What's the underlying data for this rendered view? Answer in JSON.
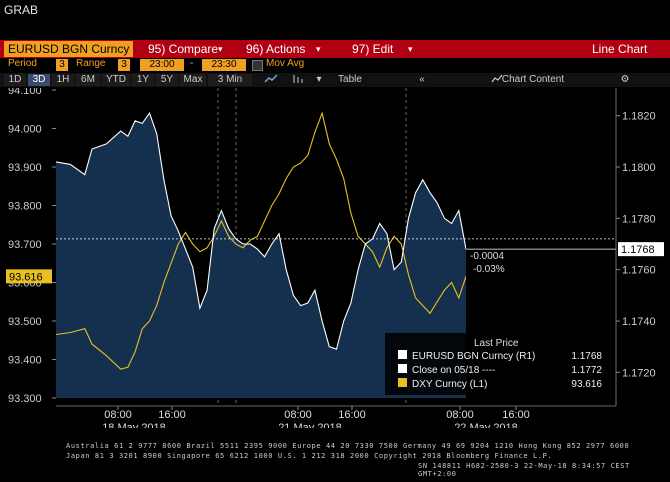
{
  "header": {
    "grab": "GRAB"
  },
  "toolbar": {
    "ticker": "EURUSD BGN Curncy",
    "compare": "95) Compare",
    "actions": "96) Actions",
    "edit": "97) Edit",
    "chart_type": "Line Chart",
    "dropdown_glyph": "▾"
  },
  "period_row": {
    "period_label": "Period",
    "period_value": "3",
    "range_label": "Range",
    "range_value": "3",
    "range_start": "23:00",
    "range_sep": "-",
    "range_end": "23:30",
    "mov_avg": "Mov Avg"
  },
  "range_buttons": [
    "1D",
    "3D",
    "1H",
    "6M",
    "YTD",
    "1Y",
    "5Y",
    "Max",
    "3 Min"
  ],
  "selected_range": "3D",
  "chart_controls": {
    "table": "Table",
    "collapse": "«",
    "chart_content": "Chart Content",
    "settings": "⚙"
  },
  "colors": {
    "accent": "#f0a020",
    "bar_red": "#b00012",
    "eurusd": "#ffffff",
    "dxy": "#e8c020",
    "fill": "#14304e"
  },
  "chart_data": {
    "type": "line",
    "x_ticks": [
      "08:00",
      "16:00",
      "08:00",
      "16:00",
      "08:00",
      "16:00"
    ],
    "date_labels": [
      "18 May 2018",
      "21 May 2018",
      "22 May 2018"
    ],
    "ylim_left": [
      93.3,
      94.1
    ],
    "ylim_right": [
      1.171,
      1.183
    ],
    "left_ticks": [
      "94.100",
      "94.000",
      "93.900",
      "93.800",
      "93.700",
      "93.600",
      "93.500",
      "93.400",
      "93.300"
    ],
    "right_ticks": [
      "1.1820",
      "1.1800",
      "1.1780",
      "1.1760",
      "1.1740",
      "1.1720"
    ],
    "left_last_label": "93.616",
    "right_last_label": "1.1768",
    "change_abs": "-0.0004",
    "change_pct": "-0.03%",
    "reference_close": 1.1772,
    "series": [
      {
        "name": "EURUSD BGN Curncy (R1)",
        "axis": "right",
        "points": [
          [
            0,
            1.1802
          ],
          [
            2,
            1.1801
          ],
          [
            4,
            1.1797
          ],
          [
            5,
            1.1807
          ],
          [
            7,
            1.1809
          ],
          [
            9,
            1.1814
          ],
          [
            10,
            1.1812
          ],
          [
            11,
            1.1818
          ],
          [
            12,
            1.1817
          ],
          [
            13,
            1.1821
          ],
          [
            14,
            1.1813
          ],
          [
            15,
            1.1795
          ],
          [
            16,
            1.1781
          ],
          [
            17,
            1.1775
          ],
          [
            18,
            1.1768
          ],
          [
            19,
            1.1761
          ],
          [
            20,
            1.1745
          ],
          [
            21,
            1.1752
          ],
          [
            22,
            1.1776
          ],
          [
            23,
            1.1783
          ],
          [
            24,
            1.1776
          ],
          [
            25,
            1.1772
          ],
          [
            26,
            1.177
          ],
          [
            27,
            1.177
          ],
          [
            28,
            1.1768
          ],
          [
            29,
            1.1765
          ],
          [
            30,
            1.177
          ],
          [
            31,
            1.1774
          ],
          [
            32,
            1.176
          ],
          [
            33,
            1.175
          ],
          [
            34,
            1.1746
          ],
          [
            35,
            1.1747
          ],
          [
            36,
            1.1752
          ],
          [
            37,
            1.174
          ],
          [
            38,
            1.173
          ],
          [
            39,
            1.1729
          ],
          [
            40,
            1.174
          ],
          [
            41,
            1.1747
          ],
          [
            42,
            1.176
          ],
          [
            43,
            1.177
          ],
          [
            44,
            1.1772
          ],
          [
            45,
            1.1778
          ],
          [
            46,
            1.1774
          ],
          [
            47,
            1.176
          ],
          [
            48,
            1.1763
          ],
          [
            49,
            1.178
          ],
          [
            50,
            1.179
          ],
          [
            51,
            1.1795
          ],
          [
            52,
            1.179
          ],
          [
            53,
            1.1786
          ],
          [
            54,
            1.178
          ],
          [
            55,
            1.1778
          ],
          [
            56,
            1.1783
          ],
          [
            57,
            1.1768
          ]
        ]
      },
      {
        "name": "DXY Curncy (L1)",
        "axis": "left",
        "points": [
          [
            0,
            93.465
          ],
          [
            2,
            93.47
          ],
          [
            4,
            93.48
          ],
          [
            5,
            93.44
          ],
          [
            7,
            93.41
          ],
          [
            9,
            93.375
          ],
          [
            10,
            93.38
          ],
          [
            11,
            93.42
          ],
          [
            12,
            93.48
          ],
          [
            13,
            93.5
          ],
          [
            14,
            93.54
          ],
          [
            15,
            93.6
          ],
          [
            16,
            93.65
          ],
          [
            17,
            93.7
          ],
          [
            18,
            93.73
          ],
          [
            19,
            93.7
          ],
          [
            20,
            93.68
          ],
          [
            21,
            93.69
          ],
          [
            22,
            93.72
          ],
          [
            23,
            93.76
          ],
          [
            24,
            93.72
          ],
          [
            25,
            93.7
          ],
          [
            26,
            93.69
          ],
          [
            27,
            93.71
          ],
          [
            28,
            93.72
          ],
          [
            29,
            93.76
          ],
          [
            30,
            93.8
          ],
          [
            31,
            93.83
          ],
          [
            32,
            93.87
          ],
          [
            33,
            93.9
          ],
          [
            34,
            93.91
          ],
          [
            35,
            93.93
          ],
          [
            36,
            93.99
          ],
          [
            37,
            94.04
          ],
          [
            38,
            93.96
          ],
          [
            39,
            93.92
          ],
          [
            40,
            93.87
          ],
          [
            41,
            93.78
          ],
          [
            42,
            93.72
          ],
          [
            43,
            93.7
          ],
          [
            44,
            93.68
          ],
          [
            45,
            93.64
          ],
          [
            46,
            93.69
          ],
          [
            47,
            93.72
          ],
          [
            48,
            93.7
          ],
          [
            49,
            93.62
          ],
          [
            50,
            93.56
          ],
          [
            51,
            93.54
          ],
          [
            52,
            93.52
          ],
          [
            53,
            93.55
          ],
          [
            54,
            93.58
          ],
          [
            55,
            93.6
          ],
          [
            56,
            93.56
          ],
          [
            57,
            93.616
          ]
        ]
      }
    ],
    "legend": {
      "title": "Last Price",
      "entries": [
        {
          "label": "EURUSD BGN Curncy  (R1)",
          "value": "1.1768",
          "color": "#ffffff"
        },
        {
          "label": "Close on 05/18 ----",
          "value": "1.1772",
          "color": "#ffffff"
        },
        {
          "label": "DXY Curncy  (L1)",
          "value": "93.616",
          "color": "#e8c020"
        }
      ]
    }
  },
  "footer": {
    "line1": "Australia 61 2 9777 8600 Brazil 5511 2395 9000 Europe 44 20 7330 7500 Germany 49 69 9204 1210 Hong Kong 852 2977 6000",
    "line2": "Japan 81 3 3201 8900      Singapore 65 6212 1000      U.S. 1 212 318 2000      Copyright 2018 Bloomberg Finance L.P.",
    "line3": "SN 148811 H682-2580-3 22-May-18  8:34:57 CEST GMT+2:00"
  }
}
